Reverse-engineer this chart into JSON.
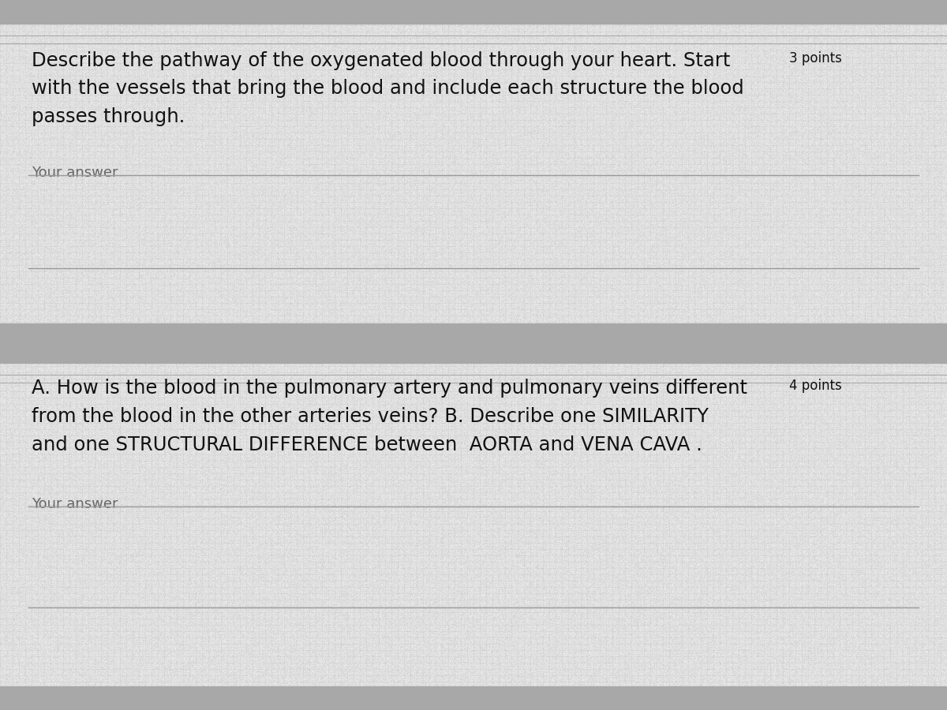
{
  "background_color": "#c8c8c8",
  "section_bg": "#dcdcda",
  "divider_color": "#a0a0a0",
  "text_color": "#111111",
  "answer_label_color": "#666666",
  "answer_line_color": "#999999",
  "s1_line1": "Describe the pathway of the oxygenated blood through your heart. Start",
  "s1_line2": "with the vessels that bring the blood and include each structure the blood",
  "s1_line3": "passes through.",
  "s1_points": "3 points",
  "s2_line1": "A. How is the blood in the pulmonary artery and pulmonary veins different",
  "s2_points": "4 points",
  "s2_line2": "from the blood in the other arteries veins? B. Describe one SIMILARITY",
  "s2_line3": "and one STRUCTURAL DIFFERENCE between  AORTA and VENA CAVA .",
  "answer_label": "Your answer",
  "figsize": [
    12,
    9
  ],
  "dpi": 100
}
